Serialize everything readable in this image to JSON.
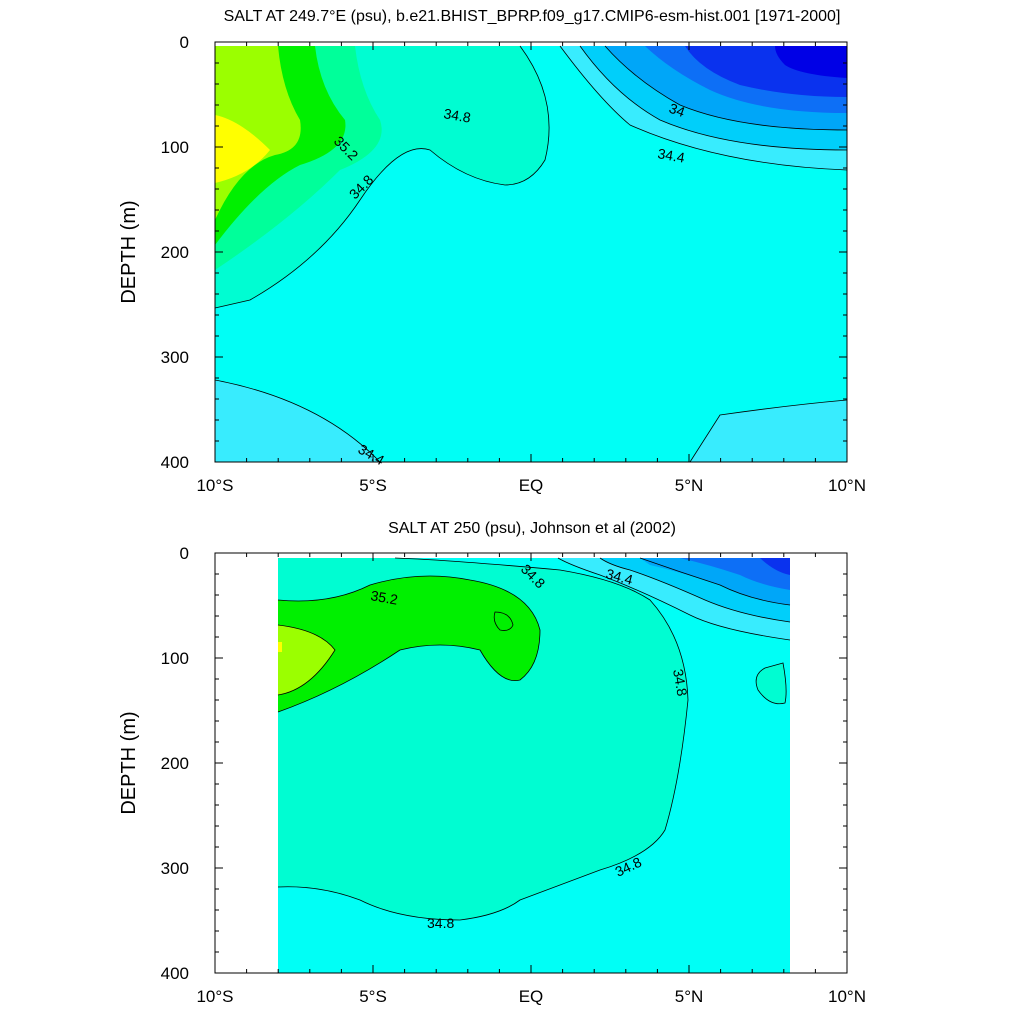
{
  "figure": {
    "panels": [
      {
        "title": "SALT AT 249.7°E (psu), b.e21.BHIST_BPRP.f09_g17.CMIP6-esm-hist.001 [1971-2000]"
      },
      {
        "title": "SALT AT 250 (psu), Johnson et al (2002)"
      }
    ]
  },
  "chart_data": [
    {
      "type": "contour",
      "title": "SALT AT 249.7°E (psu), b.e21.BHIST_BPRP.f09_g17.CMIP6-esm-hist.001 [1971-2000]",
      "xlabel": "",
      "ylabel": "DEPTH (m)",
      "xlim": [
        -10,
        10
      ],
      "ylim": [
        400,
        0
      ],
      "x_ticks": [
        -10,
        -5,
        0,
        5,
        10
      ],
      "x_tick_labels": [
        "10°S",
        "5°S",
        "EQ",
        "5°N",
        "10°N"
      ],
      "y_ticks": [
        0,
        100,
        200,
        300,
        400
      ],
      "y_tick_labels": [
        "0",
        "100",
        "200",
        "300",
        "400"
      ],
      "data_extent": {
        "lat": [
          -10,
          10
        ],
        "depth": [
          5,
          400
        ]
      },
      "levels": [
        33.4,
        33.6,
        33.8,
        34.0,
        34.2,
        34.4,
        34.6,
        34.8,
        35.0,
        35.2,
        35.4,
        35.6
      ],
      "level_colors": [
        "#0000e6",
        "#0a32ee",
        "#0d6ff6",
        "#00a6f8",
        "#00cffa",
        "#38ecfe",
        "#00fff6",
        "#00fdd2",
        "#00ff9a",
        "#00f000",
        "#9bff00",
        "#ffff00"
      ],
      "salinity_core": {
        "lat": -10,
        "depth": 100,
        "value": 35.6
      },
      "fresh_core": {
        "lat": 9,
        "depth": 5,
        "value": 33.4
      },
      "contour_labels": [
        "35.2",
        "34.8",
        "34.8",
        "34",
        "34.4",
        "34.4"
      ]
    },
    {
      "type": "contour",
      "title": "SALT AT 250 (psu), Johnson et al (2002)",
      "xlabel": "",
      "ylabel": "DEPTH (m)",
      "xlim": [
        -10,
        10
      ],
      "ylim": [
        400,
        0
      ],
      "x_ticks": [
        -10,
        -5,
        0,
        5,
        10
      ],
      "x_tick_labels": [
        "10°S",
        "5°S",
        "EQ",
        "5°N",
        "10°N"
      ],
      "y_ticks": [
        0,
        100,
        200,
        300,
        400
      ],
      "y_tick_labels": [
        "0",
        "100",
        "200",
        "300",
        "400"
      ],
      "data_extent": {
        "lat": [
          -8,
          8.2
        ],
        "depth": [
          5,
          400
        ]
      },
      "levels": [
        33.6,
        33.8,
        34.0,
        34.2,
        34.4,
        34.6,
        34.8,
        35.0,
        35.2,
        35.4
      ],
      "level_colors": [
        "#0a32ee",
        "#0d6ff6",
        "#00a6f8",
        "#00cffa",
        "#38ecfe",
        "#00fff6",
        "#00fdd2",
        "#00f060",
        "#00f000",
        "#9bff00"
      ],
      "salinity_core": {
        "lat": -8,
        "depth": 85,
        "value": 35.4
      },
      "fresh_core": {
        "lat": 8,
        "depth": 5,
        "value": 33.6
      },
      "contour_labels": [
        "35.2",
        "34.8",
        "34.4",
        "34.8",
        "34.8",
        "34.8"
      ]
    }
  ]
}
